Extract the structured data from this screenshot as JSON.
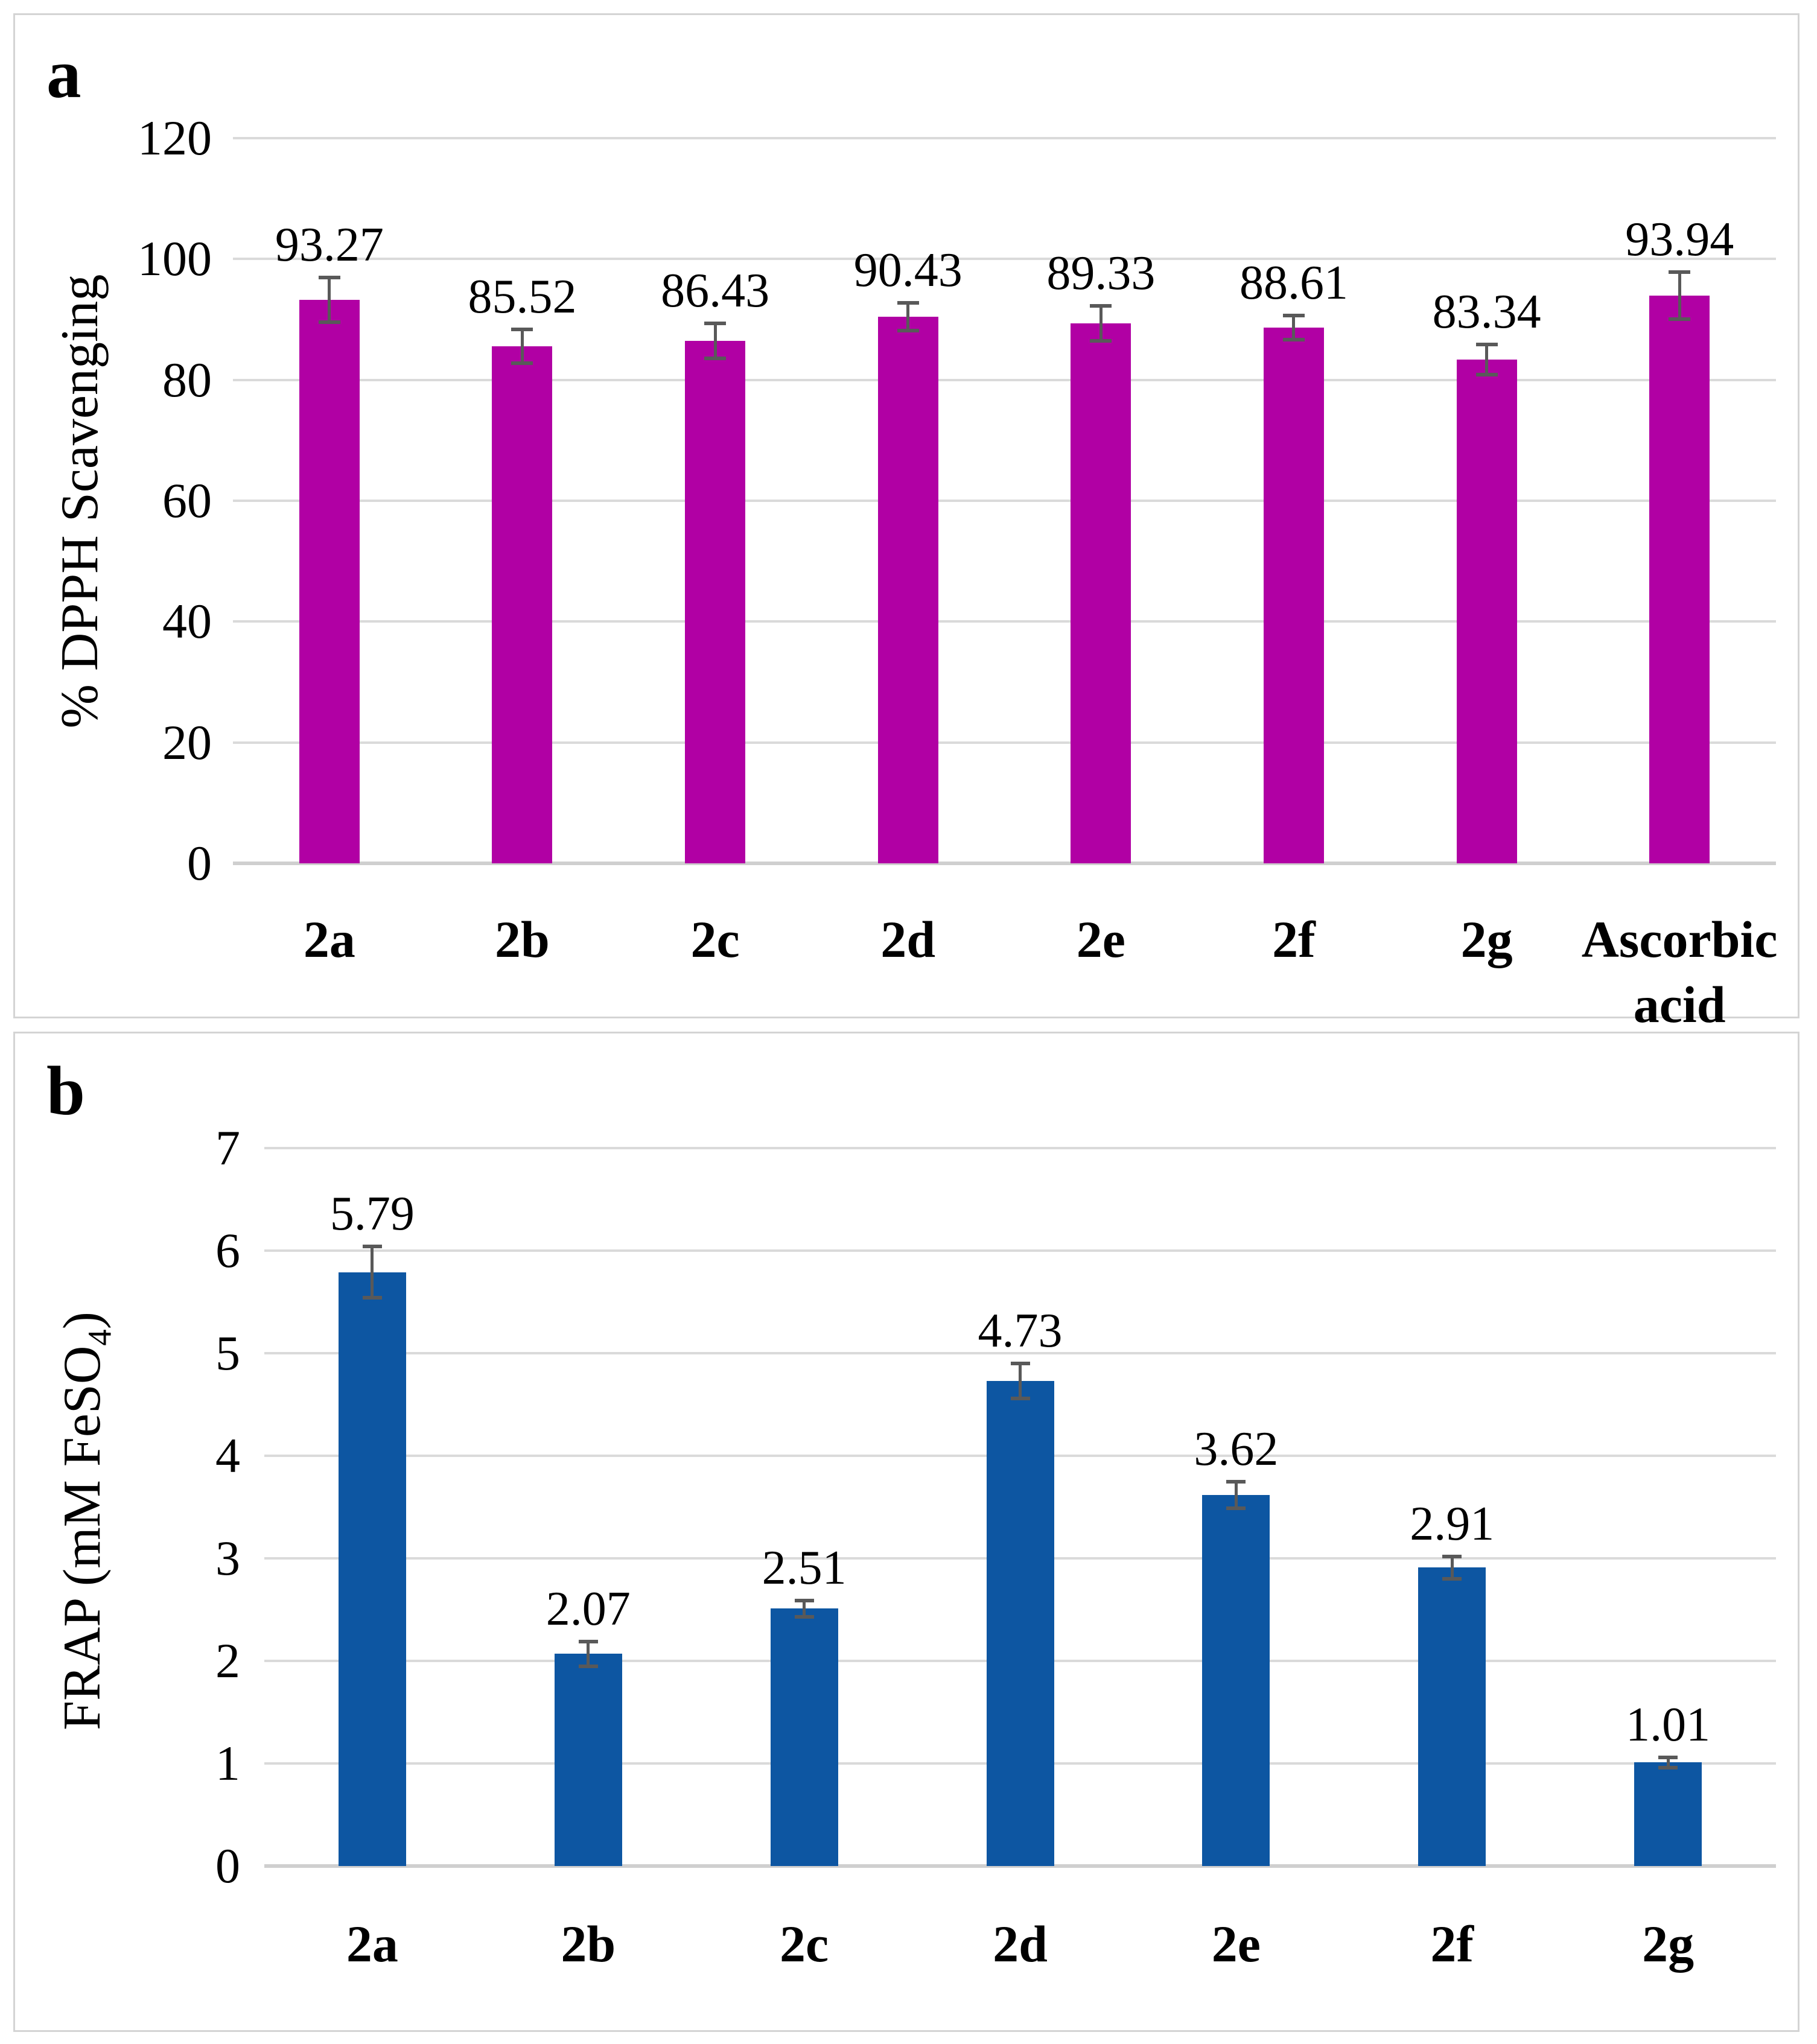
{
  "panels": [
    {
      "letter": "a"
    },
    {
      "letter": "b",
      "ylabel_prefix": "FRAP (mM FeSO",
      "ylabel_sub": "4",
      "ylabel_suffix": ")"
    }
  ],
  "chart_data": [
    {
      "type": "bar",
      "title": "",
      "ylabel": "% DPPH Scavenging",
      "xlabel": "",
      "categories": [
        "2a",
        "2b",
        "2c",
        "2d",
        "2e",
        "2f",
        "2g",
        "Ascorbic acid"
      ],
      "values": [
        93.27,
        85.52,
        86.43,
        90.43,
        89.33,
        88.61,
        83.34,
        93.94
      ],
      "value_labels": [
        "93.27",
        "85.52",
        "86.43",
        "90.43",
        "89.33",
        "88.61",
        "83.34",
        "93.94"
      ],
      "errors": [
        3.7,
        2.8,
        2.9,
        2.3,
        2.9,
        2.0,
        2.5,
        3.9
      ],
      "yticks": [
        0,
        20,
        40,
        60,
        80,
        100,
        120
      ],
      "ylim": [
        0,
        120
      ],
      "grid": true,
      "legend": "none",
      "bar_color": "#B100A4",
      "error_color": "#595959"
    },
    {
      "type": "bar",
      "title": "",
      "ylabel": "FRAP (mM FeSO₄)",
      "xlabel": "",
      "categories": [
        "2a",
        "2b",
        "2c",
        "2d",
        "2e",
        "2f",
        "2g"
      ],
      "values": [
        5.79,
        2.07,
        2.51,
        4.73,
        3.62,
        2.91,
        1.01
      ],
      "value_labels": [
        "5.79",
        "2.07",
        "2.51",
        "4.73",
        "3.62",
        "2.91",
        "1.01"
      ],
      "errors": [
        0.25,
        0.12,
        0.08,
        0.17,
        0.13,
        0.11,
        0.05
      ],
      "yticks": [
        0,
        1,
        2,
        3,
        4,
        5,
        6,
        7
      ],
      "ylim": [
        0,
        7
      ],
      "grid": true,
      "legend": "none",
      "bar_color": "#0D56A2",
      "error_color": "#595959"
    }
  ]
}
